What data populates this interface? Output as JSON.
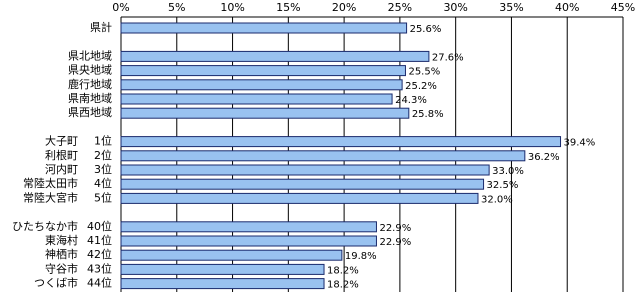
{
  "chart_data": {
    "type": "bar",
    "orientation": "horizontal",
    "categories": [
      "県計",
      null,
      "県北地域",
      "県央地域",
      "鹿行地域",
      "県南地域",
      "県西地域",
      null,
      "大子町",
      "利根町",
      "河内町",
      "常陸太田市",
      "常陸大宮市",
      null,
      "ひたちなか市",
      "東海村",
      "神栖市",
      "守谷市",
      "つくば市"
    ],
    "ranks": [
      null,
      null,
      null,
      null,
      null,
      null,
      null,
      null,
      "1位",
      "2位",
      "3位",
      "4位",
      "5位",
      null,
      "40位",
      "41位",
      "42位",
      "43位",
      "44位"
    ],
    "values": [
      25.6,
      null,
      27.6,
      25.5,
      25.2,
      24.3,
      25.8,
      null,
      39.4,
      36.2,
      33.0,
      32.5,
      32.0,
      null,
      22.9,
      22.9,
      19.8,
      18.2,
      18.2
    ],
    "value_labels": [
      "25.6%",
      null,
      "27.6%",
      "25.5%",
      "25.2%",
      "24.3%",
      "25.8%",
      null,
      "39.4%",
      "36.2%",
      "33.0%",
      "32.5%",
      "32.0%",
      null,
      "22.9%",
      "22.9%",
      "19.8%",
      "18.2%",
      "18.2%"
    ],
    "color": "#99c2f0",
    "xlim": [
      0,
      45
    ],
    "xticks": [
      {
        "value": 0,
        "label": "0%"
      },
      {
        "value": 5,
        "label": "5%"
      },
      {
        "value": 10,
        "label": "10%"
      },
      {
        "value": 15,
        "label": "15%"
      },
      {
        "value": 20,
        "label": "20%"
      },
      {
        "value": 25,
        "label": "25%"
      },
      {
        "value": 30,
        "label": "30%"
      },
      {
        "value": 35,
        "label": "35%"
      },
      {
        "value": 40,
        "label": "40%"
      },
      {
        "value": 45,
        "label": "45%"
      }
    ],
    "grid": true
  }
}
